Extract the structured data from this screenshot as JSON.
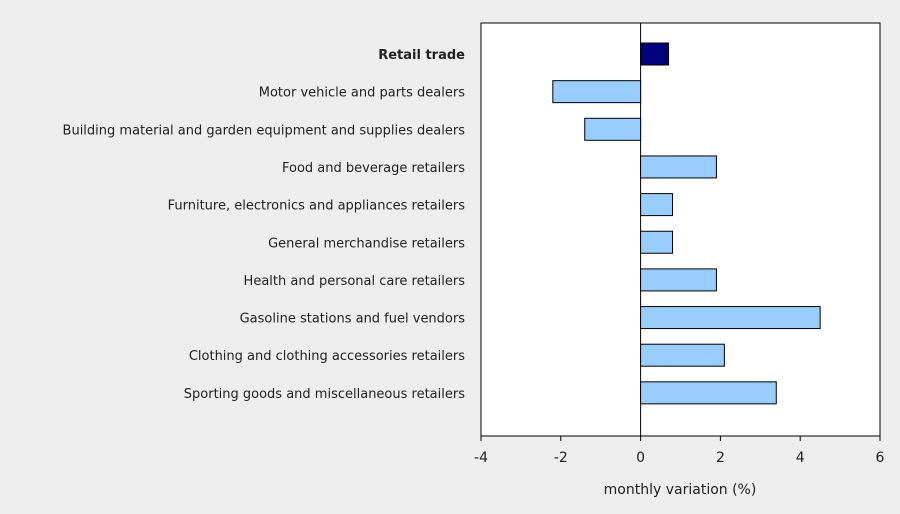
{
  "chart_data": {
    "type": "bar",
    "orientation": "horizontal",
    "categories": [
      "Retail trade",
      "Motor vehicle and parts dealers",
      "Building material and garden equipment and supplies dealers",
      "Food and beverage retailers",
      "Furniture, electronics and appliances retailers",
      "General merchandise retailers",
      "Health and personal care retailers",
      "Gasoline stations and fuel vendors",
      "Clothing and clothing accessories retailers",
      "Sporting goods and miscellaneous retailers"
    ],
    "values": [
      0.7,
      -2.2,
      -1.4,
      1.9,
      0.8,
      0.8,
      1.9,
      4.5,
      2.1,
      3.4
    ],
    "highlight_index": 0,
    "xlabel": "monthly variation (%)",
    "ylabel": "",
    "xlim": [
      -4,
      6
    ],
    "xticks": [
      -4,
      -2,
      0,
      2,
      4,
      6
    ],
    "grid": false,
    "colors": {
      "highlight": "#00007a",
      "bar": "#99ccff",
      "bar_stroke": "#000000",
      "plot_background": "#ffffff",
      "page_background": "#eeeeee"
    }
  }
}
